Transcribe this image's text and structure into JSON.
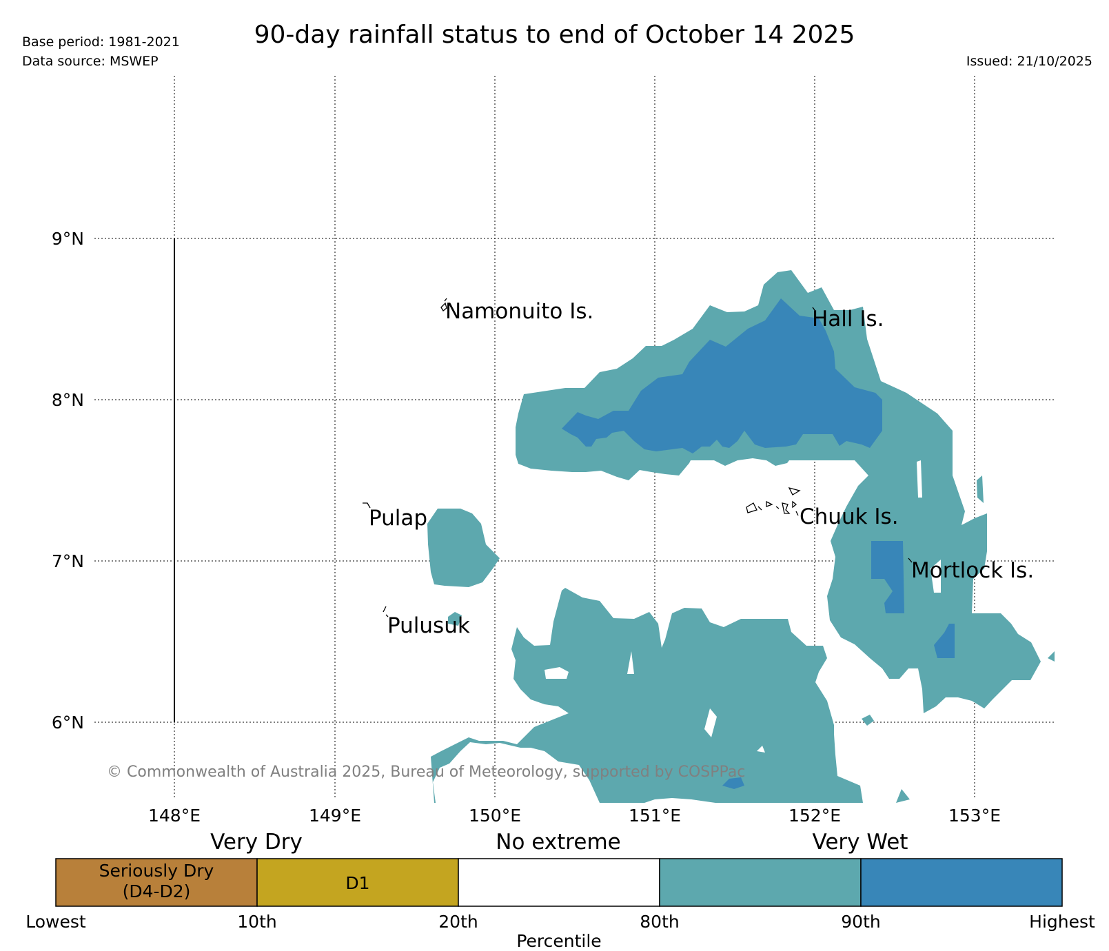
{
  "header": {
    "title": "90-day rainfall status to end of October 14 2025",
    "base_period": "Base period: 1981-2021",
    "data_source": "Data source: MSWEP",
    "issued": "Issued: 21/10/2025"
  },
  "map": {
    "lat_labels": [
      "9°N",
      "8°N",
      "7°N",
      "6°N"
    ],
    "lon_labels": [
      "148°E",
      "149°E",
      "150°E",
      "151°E",
      "152°E",
      "153°E"
    ],
    "places": {
      "namonuito": "Namonuito Is.",
      "hall": "Hall Is.",
      "pulap": "Pulap",
      "chuuk": "Chuuk Is.",
      "mortlock": "Mortlock Is.",
      "pulusuk": "Pulusuk"
    },
    "copyright": "© Commonwealth of Australia 2025, Bureau of Meteorology, supported by COSPPac",
    "colors": {
      "wet_80_90": "#5da8ae",
      "wet_90_plus": "#3886b8"
    }
  },
  "legend": {
    "groups": [
      "Very Dry",
      "No extreme",
      "Very Wet"
    ],
    "categories": [
      {
        "label_line1": "Seriously Dry",
        "label_line2": "(D4-D2)",
        "color": "#b8803a"
      },
      {
        "label_line1": "D1",
        "label_line2": "",
        "color": "#c4a520"
      },
      {
        "label_line1": "",
        "label_line2": "",
        "color": "#ffffff"
      },
      {
        "label_line1": "",
        "label_line2": "",
        "color": "#5da8ae"
      },
      {
        "label_line1": "",
        "label_line2": "",
        "color": "#3886b8"
      }
    ],
    "ticks": [
      "Lowest",
      "10th",
      "20th",
      "80th",
      "90th",
      "Highest"
    ],
    "axis_label": "Percentile"
  }
}
